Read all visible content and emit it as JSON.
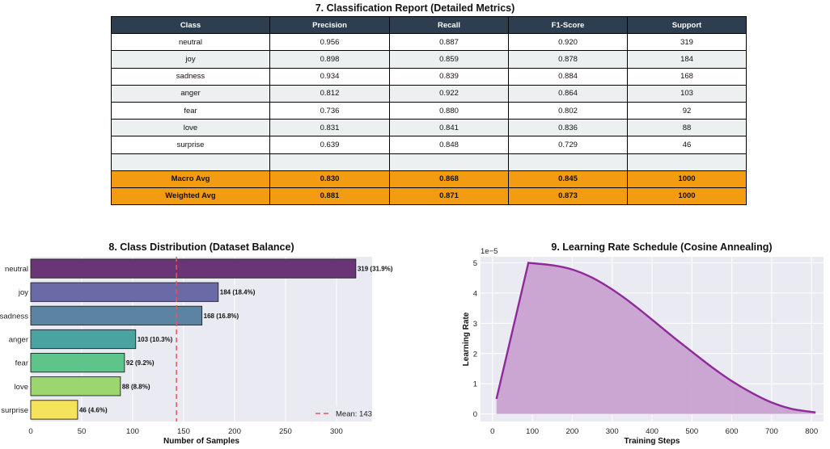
{
  "report": {
    "title": "7. Classification Report (Detailed Metrics)",
    "headers": [
      "Class",
      "Precision",
      "Recall",
      "F1-Score",
      "Support"
    ],
    "rows": [
      [
        "neutral",
        "0.956",
        "0.887",
        "0.920",
        "319"
      ],
      [
        "joy",
        "0.898",
        "0.859",
        "0.878",
        "184"
      ],
      [
        "sadness",
        "0.934",
        "0.839",
        "0.884",
        "168"
      ],
      [
        "anger",
        "0.812",
        "0.922",
        "0.864",
        "103"
      ],
      [
        "fear",
        "0.736",
        "0.880",
        "0.802",
        "92"
      ],
      [
        "love",
        "0.831",
        "0.841",
        "0.836",
        "88"
      ],
      [
        "surprise",
        "0.639",
        "0.848",
        "0.729",
        "46"
      ],
      [
        "",
        "",
        "",
        "",
        ""
      ],
      [
        "Macro Avg",
        "0.830",
        "0.868",
        "0.845",
        "1000"
      ],
      [
        "Weighted Avg",
        "0.881",
        "0.871",
        "0.873",
        "1000"
      ]
    ],
    "colors": {
      "header": "#2c3e50",
      "avg": "#f39c12",
      "stripe": "#ecf0f1"
    }
  },
  "chart_data": [
    {
      "type": "bar",
      "orientation": "horizontal",
      "title": "8. Class Distribution (Dataset Balance)",
      "xlabel": "Number of Samples",
      "ylabel": "",
      "categories": [
        "neutral",
        "joy",
        "sadness",
        "anger",
        "fear",
        "love",
        "surprise"
      ],
      "values": [
        319,
        184,
        168,
        103,
        92,
        88,
        46
      ],
      "data_labels": [
        "319 (31.9%)",
        "184 (18.4%)",
        "168 (16.8%)",
        "103 (10.3%)",
        "92 (9.2%)",
        "88 (8.8%)",
        "46 (4.6%)"
      ],
      "colors": [
        "#6a3577",
        "#6a6aa7",
        "#5c84a2",
        "#4aa3a0",
        "#5ec48a",
        "#9bd66e",
        "#f6e35c"
      ],
      "xlim": [
        0,
        335
      ],
      "xticks": [
        0,
        50,
        100,
        150,
        200,
        250,
        300
      ],
      "mean": 143,
      "mean_label": "Mean: 143",
      "mean_color": "#e05a5a",
      "legend": "bottom-right",
      "grid": true
    },
    {
      "type": "area",
      "title": "9. Learning Rate Schedule (Cosine Annealing)",
      "xlabel": "Training Steps",
      "ylabel": "Learning Rate",
      "y_offset_label": "1e−5",
      "xlim": [
        -30,
        830
      ],
      "ylim": [
        -0.25,
        5.2
      ],
      "xticks": [
        0,
        100,
        200,
        300,
        400,
        500,
        600,
        700,
        800
      ],
      "yticks": [
        0,
        1,
        2,
        3,
        4,
        5
      ],
      "x": [
        10,
        90,
        150,
        200,
        250,
        300,
        350,
        400,
        450,
        500,
        550,
        600,
        650,
        700,
        750,
        810
      ],
      "y": [
        0.5,
        5.0,
        4.92,
        4.78,
        4.51,
        4.12,
        3.65,
        3.12,
        2.58,
        2.06,
        1.55,
        1.09,
        0.7,
        0.38,
        0.17,
        0.05
      ],
      "line_color": "#8e2a9a",
      "fill_color": "#c9a2d1",
      "grid": true
    }
  ]
}
